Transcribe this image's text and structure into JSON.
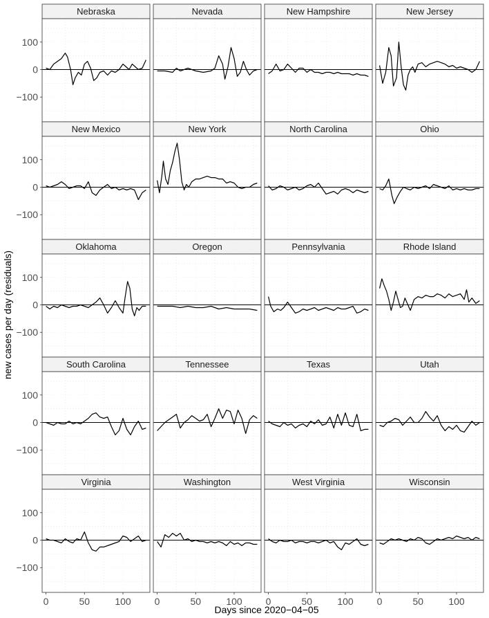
{
  "chart_data": {
    "type": "line",
    "facet_layout": "4 columns x 5 rows, shared axes",
    "xlabel": "Days since 2020−04−05",
    "ylabel": "new cases per day (residuals)",
    "xlim": [
      -5,
      135
    ],
    "ylim": [
      -190,
      185
    ],
    "x_ticks": [
      0,
      50,
      100
    ],
    "y_ticks": [
      -100,
      0,
      100
    ],
    "y_tick_labels": [
      "−100",
      "0",
      "100"
    ],
    "zero_line": true,
    "grid": "minor dotted",
    "colors": {
      "line": "#000000",
      "strip_fill": "#f2f2f2",
      "grid": "#ebebeb"
    },
    "panels": [
      {
        "name": "Nebraska",
        "x": [
          0,
          5,
          10,
          15,
          20,
          25,
          28,
          32,
          35,
          38,
          42,
          46,
          50,
          54,
          58,
          62,
          66,
          70,
          75,
          80,
          85,
          90,
          95,
          100,
          104,
          108,
          112,
          116,
          120,
          125,
          130
        ],
        "y": [
          5,
          0,
          20,
          30,
          40,
          60,
          45,
          0,
          -55,
          -30,
          -10,
          -20,
          20,
          30,
          5,
          -40,
          -30,
          -10,
          -5,
          -20,
          -5,
          -10,
          0,
          20,
          10,
          0,
          20,
          10,
          0,
          5,
          35
        ]
      },
      {
        "name": "Nevada",
        "x": [
          0,
          10,
          20,
          25,
          30,
          40,
          50,
          60,
          70,
          75,
          80,
          85,
          88,
          92,
          96,
          100,
          104,
          108,
          112,
          116,
          120,
          125,
          130
        ],
        "y": [
          -5,
          -5,
          -10,
          5,
          -5,
          5,
          -5,
          -10,
          -5,
          5,
          50,
          20,
          -35,
          10,
          80,
          40,
          -25,
          -10,
          30,
          0,
          -20,
          -5,
          0
        ]
      },
      {
        "name": "New Hampshire",
        "x": [
          0,
          5,
          10,
          15,
          20,
          25,
          30,
          35,
          40,
          45,
          50,
          55,
          60,
          65,
          70,
          75,
          80,
          85,
          90,
          95,
          100,
          105,
          110,
          115,
          120,
          125,
          130
        ],
        "y": [
          -15,
          -5,
          20,
          -5,
          0,
          20,
          5,
          -10,
          5,
          5,
          -10,
          0,
          -10,
          -10,
          -15,
          -10,
          -10,
          -15,
          -10,
          -15,
          -15,
          -15,
          -20,
          -15,
          -20,
          -20,
          -25
        ]
      },
      {
        "name": "New Jersey",
        "x": [
          0,
          4,
          8,
          12,
          15,
          18,
          22,
          25,
          28,
          31,
          34,
          37,
          40,
          43,
          46,
          50,
          55,
          60,
          65,
          70,
          75,
          80,
          85,
          90,
          95,
          100,
          105,
          110,
          115,
          120,
          125,
          130
        ],
        "y": [
          15,
          -50,
          -10,
          80,
          50,
          -60,
          -30,
          100,
          10,
          -55,
          -75,
          -20,
          0,
          10,
          -10,
          20,
          25,
          10,
          20,
          25,
          30,
          25,
          20,
          10,
          15,
          5,
          10,
          5,
          0,
          -10,
          0,
          30
        ]
      },
      {
        "name": "New Mexico",
        "x": [
          0,
          5,
          10,
          15,
          20,
          25,
          30,
          35,
          40,
          45,
          50,
          55,
          60,
          65,
          70,
          75,
          80,
          85,
          90,
          95,
          100,
          105,
          110,
          115,
          120,
          125,
          130
        ],
        "y": [
          5,
          0,
          5,
          10,
          20,
          10,
          -5,
          0,
          5,
          5,
          -5,
          20,
          -20,
          -30,
          -10,
          0,
          10,
          -5,
          0,
          -10,
          -5,
          -10,
          -5,
          -10,
          -45,
          -20,
          -10
        ]
      },
      {
        "name": "New York",
        "x": [
          0,
          3,
          6,
          8,
          11,
          14,
          17,
          20,
          23,
          26,
          29,
          32,
          35,
          38,
          41,
          45,
          50,
          55,
          60,
          65,
          70,
          75,
          80,
          85,
          90,
          95,
          100,
          105,
          110,
          115,
          120,
          125,
          130
        ],
        "y": [
          25,
          -20,
          40,
          95,
          30,
          10,
          60,
          90,
          130,
          160,
          100,
          20,
          -10,
          10,
          0,
          20,
          30,
          30,
          35,
          40,
          35,
          35,
          30,
          30,
          15,
          20,
          15,
          0,
          -5,
          0,
          0,
          10,
          15
        ]
      },
      {
        "name": "North Carolina",
        "x": [
          0,
          5,
          10,
          15,
          20,
          25,
          30,
          35,
          40,
          45,
          50,
          55,
          60,
          65,
          70,
          75,
          80,
          85,
          90,
          95,
          100,
          105,
          110,
          115,
          120,
          125,
          130
        ],
        "y": [
          5,
          -10,
          -5,
          5,
          0,
          -10,
          -5,
          0,
          -10,
          -5,
          5,
          10,
          0,
          15,
          -5,
          -25,
          -20,
          -15,
          -25,
          -10,
          -5,
          -10,
          -20,
          -10,
          -15,
          -20,
          -15
        ]
      },
      {
        "name": "Ohio",
        "x": [
          0,
          4,
          8,
          12,
          16,
          19,
          23,
          27,
          31,
          35,
          40,
          45,
          50,
          55,
          60,
          65,
          70,
          75,
          80,
          85,
          90,
          95,
          100,
          105,
          110,
          115,
          120,
          125,
          130
        ],
        "y": [
          -5,
          -10,
          5,
          30,
          -30,
          -60,
          -35,
          -15,
          0,
          -5,
          -10,
          0,
          -5,
          0,
          5,
          -5,
          10,
          5,
          0,
          -5,
          5,
          -10,
          -5,
          -10,
          -5,
          -10,
          -10,
          -5,
          -5
        ]
      },
      {
        "name": "Oklahoma",
        "x": [
          0,
          5,
          10,
          15,
          20,
          25,
          30,
          35,
          40,
          45,
          50,
          55,
          60,
          65,
          70,
          75,
          80,
          85,
          90,
          95,
          100,
          103,
          106,
          109,
          112,
          115,
          118,
          121,
          125,
          130
        ],
        "y": [
          -5,
          -15,
          -5,
          -10,
          0,
          -5,
          -10,
          -5,
          -5,
          0,
          -5,
          -10,
          0,
          10,
          25,
          0,
          -30,
          -10,
          15,
          -10,
          -30,
          30,
          85,
          60,
          -15,
          -40,
          -10,
          -20,
          -5,
          -5
        ]
      },
      {
        "name": "Oregon",
        "x": [
          0,
          10,
          20,
          30,
          40,
          50,
          60,
          70,
          80,
          90,
          100,
          110,
          120,
          130
        ],
        "y": [
          -5,
          -5,
          -5,
          -10,
          -5,
          -10,
          -10,
          -5,
          -15,
          -10,
          -15,
          -15,
          -15,
          -20
        ]
      },
      {
        "name": "Pennsylvania",
        "x": [
          0,
          3,
          7,
          12,
          16,
          20,
          25,
          30,
          35,
          40,
          45,
          50,
          55,
          60,
          65,
          70,
          75,
          80,
          85,
          90,
          95,
          100,
          105,
          110,
          115,
          120,
          125,
          130
        ],
        "y": [
          30,
          -5,
          -25,
          -15,
          -20,
          -10,
          10,
          -10,
          -30,
          -25,
          -15,
          -20,
          -15,
          -10,
          -20,
          -15,
          -10,
          -15,
          -20,
          -10,
          -15,
          -15,
          -10,
          -5,
          -30,
          -25,
          -15,
          -20
        ]
      },
      {
        "name": "Rhode Island",
        "x": [
          0,
          3,
          6,
          9,
          12,
          15,
          18,
          21,
          24,
          27,
          30,
          33,
          36,
          40,
          45,
          50,
          55,
          60,
          65,
          70,
          75,
          80,
          85,
          90,
          95,
          100,
          105,
          110,
          113,
          116,
          120,
          125,
          130
        ],
        "y": [
          60,
          95,
          70,
          50,
          20,
          -20,
          10,
          50,
          20,
          -10,
          -5,
          25,
          5,
          -20,
          20,
          30,
          25,
          35,
          30,
          30,
          40,
          35,
          25,
          40,
          30,
          35,
          40,
          20,
          55,
          10,
          25,
          5,
          15
        ]
      },
      {
        "name": "South Carolina",
        "x": [
          0,
          5,
          10,
          15,
          20,
          25,
          30,
          35,
          40,
          45,
          50,
          55,
          60,
          65,
          70,
          75,
          80,
          85,
          90,
          95,
          100,
          105,
          110,
          115,
          120,
          125,
          130
        ],
        "y": [
          0,
          -5,
          -10,
          0,
          -5,
          -5,
          5,
          -5,
          0,
          -5,
          5,
          15,
          30,
          35,
          20,
          15,
          20,
          -15,
          -45,
          -30,
          15,
          -25,
          -45,
          -15,
          5,
          -25,
          -20
        ]
      },
      {
        "name": "Tennessee",
        "x": [
          0,
          5,
          10,
          15,
          20,
          25,
          30,
          35,
          40,
          45,
          50,
          55,
          60,
          65,
          70,
          75,
          80,
          85,
          90,
          95,
          100,
          105,
          110,
          115,
          120,
          125,
          130
        ],
        "y": [
          -30,
          -15,
          0,
          10,
          20,
          30,
          -20,
          0,
          10,
          25,
          15,
          5,
          10,
          30,
          -15,
          15,
          50,
          15,
          45,
          40,
          -5,
          45,
          15,
          -40,
          10,
          25,
          15
        ]
      },
      {
        "name": "Texas",
        "x": [
          0,
          5,
          10,
          15,
          20,
          25,
          30,
          35,
          40,
          45,
          50,
          55,
          60,
          65,
          70,
          75,
          80,
          85,
          90,
          95,
          100,
          105,
          110,
          115,
          120,
          125,
          130
        ],
        "y": [
          5,
          -5,
          -10,
          -15,
          0,
          -10,
          -5,
          -20,
          -10,
          -5,
          -15,
          5,
          -5,
          10,
          -10,
          -5,
          20,
          -20,
          30,
          -10,
          35,
          -10,
          -15,
          30,
          -30,
          -25,
          -25
        ]
      },
      {
        "name": "Utah",
        "x": [
          0,
          5,
          10,
          15,
          20,
          25,
          30,
          35,
          40,
          45,
          50,
          55,
          60,
          65,
          70,
          75,
          80,
          85,
          90,
          95,
          100,
          105,
          110,
          115,
          120,
          125,
          130
        ],
        "y": [
          -10,
          -15,
          0,
          5,
          15,
          10,
          -10,
          5,
          20,
          0,
          0,
          15,
          40,
          20,
          5,
          25,
          -10,
          -30,
          -15,
          -25,
          -10,
          -30,
          -35,
          -15,
          5,
          -10,
          0
        ]
      },
      {
        "name": "Virginia",
        "x": [
          0,
          5,
          10,
          15,
          20,
          25,
          30,
          35,
          40,
          45,
          50,
          55,
          60,
          65,
          70,
          75,
          80,
          85,
          90,
          95,
          100,
          105,
          110,
          115,
          120,
          125,
          130
        ],
        "y": [
          5,
          0,
          0,
          -5,
          -10,
          5,
          -5,
          -10,
          5,
          0,
          30,
          -10,
          -35,
          -40,
          -25,
          -25,
          -20,
          -15,
          -10,
          -5,
          15,
          10,
          -5,
          5,
          15,
          -5,
          0
        ]
      },
      {
        "name": "Washington",
        "x": [
          0,
          5,
          10,
          15,
          20,
          25,
          30,
          35,
          40,
          45,
          50,
          55,
          60,
          65,
          70,
          75,
          80,
          85,
          90,
          95,
          100,
          105,
          110,
          115,
          120,
          125,
          130
        ],
        "y": [
          -5,
          -25,
          20,
          10,
          25,
          15,
          25,
          0,
          5,
          -5,
          0,
          -5,
          -5,
          -10,
          -5,
          -10,
          -5,
          -10,
          -20,
          -5,
          -15,
          -10,
          -20,
          -10,
          -10,
          -15,
          -15
        ]
      },
      {
        "name": "West Virginia",
        "x": [
          0,
          5,
          10,
          15,
          20,
          25,
          30,
          35,
          40,
          45,
          50,
          55,
          60,
          65,
          70,
          75,
          80,
          85,
          90,
          95,
          100,
          105,
          110,
          115,
          120,
          125,
          130
        ],
        "y": [
          5,
          -5,
          -10,
          0,
          -5,
          -5,
          0,
          -10,
          -5,
          -5,
          -10,
          -5,
          -5,
          -10,
          -5,
          0,
          -10,
          -5,
          -25,
          -35,
          -10,
          -15,
          -5,
          5,
          -15,
          -20,
          -15
        ]
      },
      {
        "name": "Wisconsin",
        "x": [
          0,
          5,
          10,
          15,
          20,
          25,
          30,
          35,
          40,
          45,
          50,
          55,
          60,
          65,
          70,
          75,
          80,
          85,
          90,
          95,
          100,
          105,
          110,
          115,
          120,
          125,
          130
        ],
        "y": [
          -10,
          -15,
          -5,
          5,
          0,
          5,
          0,
          -5,
          5,
          0,
          10,
          5,
          -10,
          -15,
          -5,
          5,
          0,
          5,
          10,
          5,
          15,
          10,
          5,
          10,
          0,
          10,
          5
        ]
      }
    ]
  }
}
